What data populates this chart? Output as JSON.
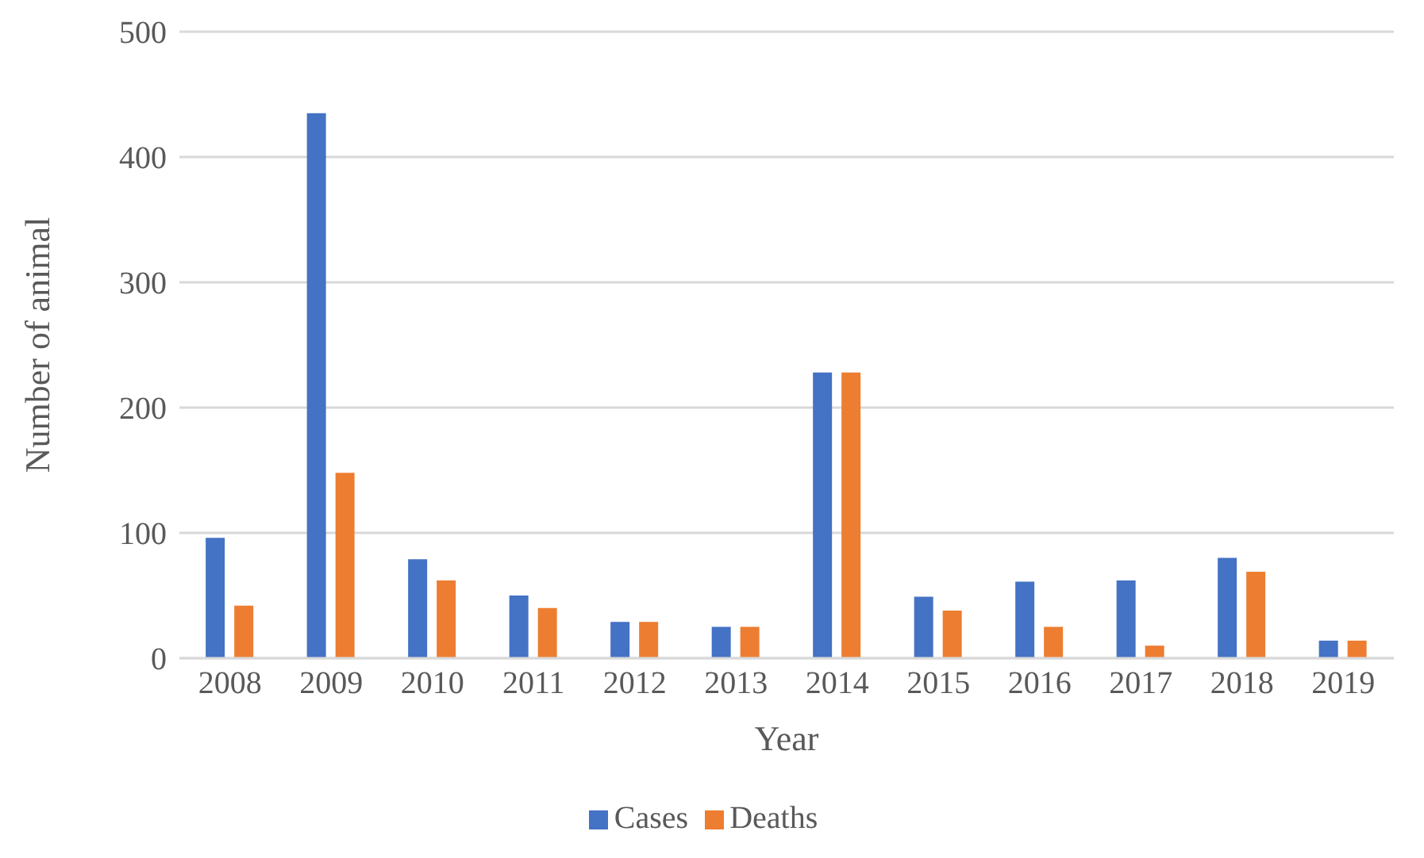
{
  "chart_data": {
    "type": "bar",
    "xlabel": "Year",
    "ylabel": "Number of animal",
    "categories": [
      "2008",
      "2009",
      "2010",
      "2011",
      "2012",
      "2013",
      "2014",
      "2015",
      "2016",
      "2017",
      "2018",
      "2019"
    ],
    "series": [
      {
        "name": "Cases",
        "color": "#4472c4",
        "values": [
          96,
          435,
          79,
          50,
          29,
          25,
          228,
          49,
          61,
          62,
          80,
          14
        ]
      },
      {
        "name": "Deaths",
        "color": "#ed7d31",
        "values": [
          42,
          148,
          62,
          40,
          29,
          25,
          228,
          38,
          25,
          10,
          69,
          14
        ]
      }
    ],
    "ylim": [
      0,
      500
    ],
    "yticks": [
      0,
      100,
      200,
      300,
      400,
      500
    ],
    "grid": "y",
    "legend": "bottom"
  }
}
